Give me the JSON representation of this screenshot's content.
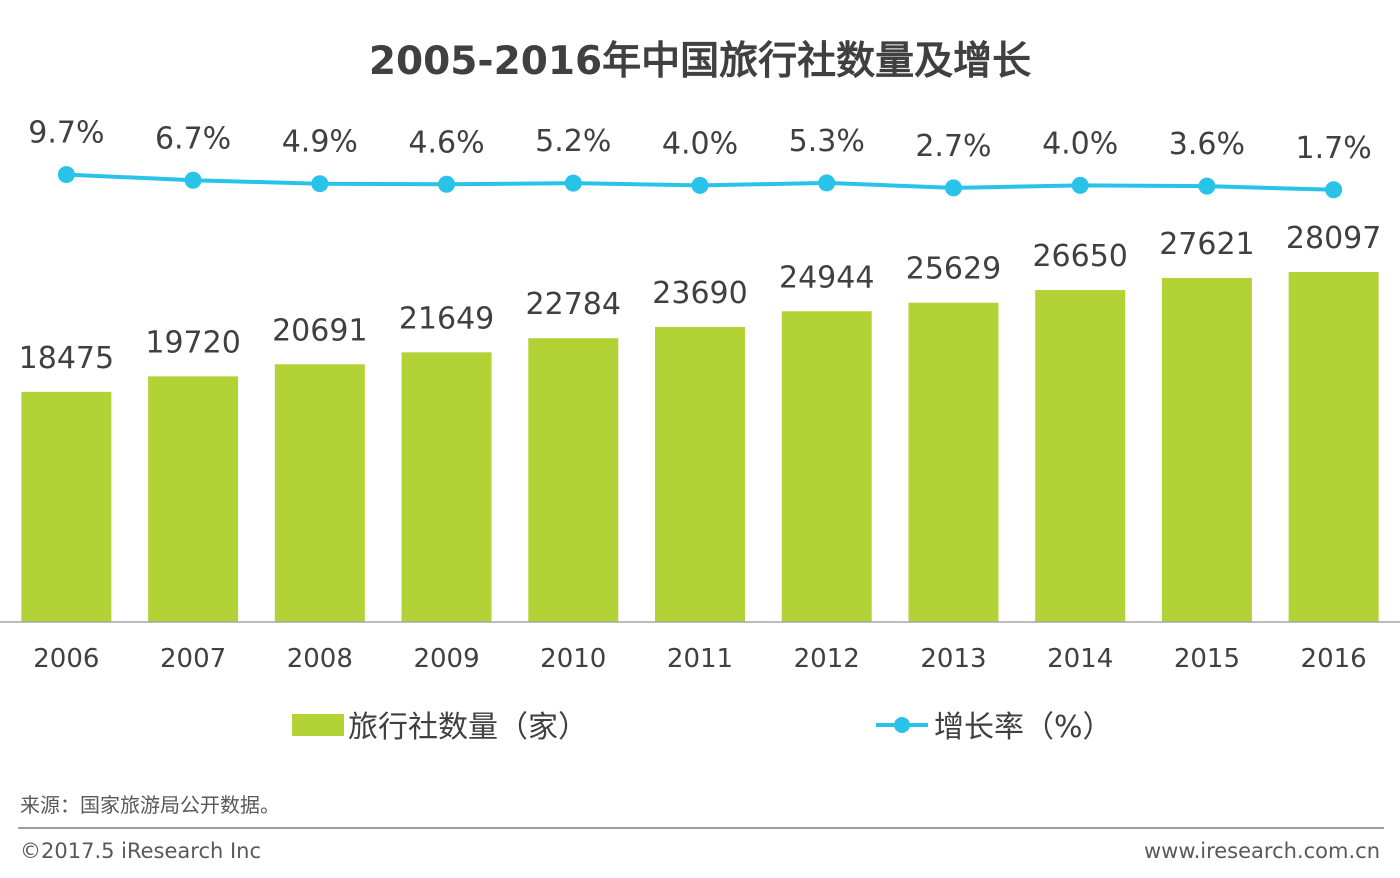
{
  "colors": {
    "bar": "#b2d235",
    "line": "#29c3ea",
    "text": "#404040",
    "axis": "#a6a6a6",
    "footer_rule": "#7f7f7f"
  },
  "chart_data": {
    "type": "bar",
    "title": "2005-2016年中国旅行社数量及增长",
    "categories": [
      "2006",
      "2007",
      "2008",
      "2009",
      "2010",
      "2011",
      "2012",
      "2013",
      "2014",
      "2015",
      "2016"
    ],
    "series": [
      {
        "name": "旅行社数量（家）",
        "type": "bar",
        "values": [
          18475,
          19720,
          20691,
          21649,
          22784,
          23690,
          24944,
          25629,
          26650,
          27621,
          28097
        ],
        "labels": [
          "18475",
          "19720",
          "20691",
          "21649",
          "22784",
          "23690",
          "24944",
          "25629",
          "26650",
          "27621",
          "28097"
        ]
      },
      {
        "name": "增长率（%）",
        "type": "line",
        "values": [
          9.7,
          6.7,
          4.9,
          4.6,
          5.2,
          4.0,
          5.3,
          2.7,
          4.0,
          3.6,
          1.7
        ],
        "labels": [
          "9.7%",
          "6.7%",
          "4.9%",
          "4.6%",
          "5.2%",
          "4.0%",
          "5.3%",
          "2.7%",
          "4.0%",
          "3.6%",
          "1.7%"
        ]
      }
    ],
    "legend_position": "bottom",
    "grid": false
  },
  "source_note": "来源：国家旅游局公开数据。",
  "footer": {
    "copyright": "©2017.5 iResearch Inc",
    "website": "www.iresearch.com.cn"
  }
}
